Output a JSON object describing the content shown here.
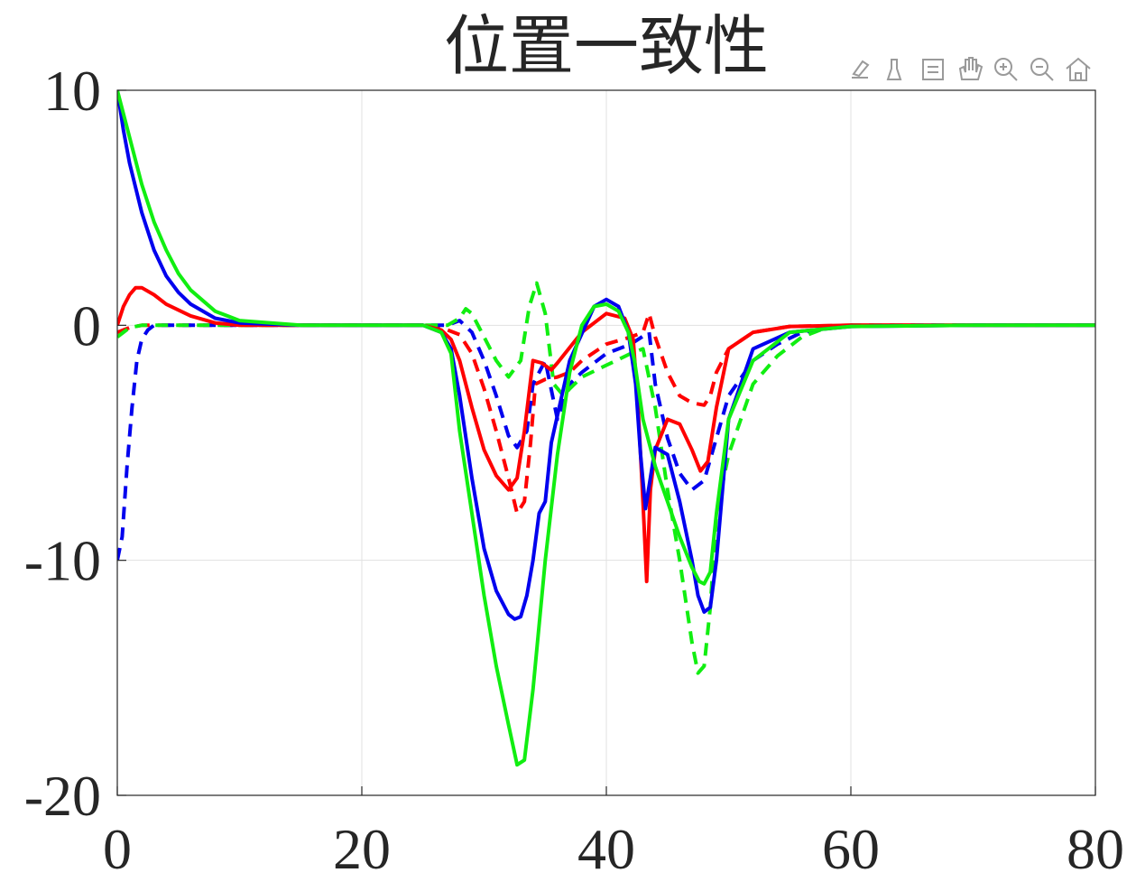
{
  "chart_data": {
    "type": "line",
    "title": "位置一致性",
    "xlabel": "",
    "ylabel": "",
    "xlim": [
      0,
      80
    ],
    "ylim": [
      -20,
      10
    ],
    "xticks": [
      0,
      20,
      40,
      60,
      80
    ],
    "xtick_labels": [
      "0",
      "20",
      "40",
      "60",
      "80"
    ],
    "yticks": [
      10,
      0,
      -10,
      -20
    ],
    "ytick_labels": [
      "10",
      "0",
      "-10",
      "-20"
    ],
    "grid": true,
    "series": [
      {
        "color": "#ff0000",
        "dash": false,
        "x": [
          0,
          0.5,
          1,
          1.5,
          2,
          3,
          4,
          6,
          8,
          10,
          15,
          20,
          25,
          26.5,
          27.3,
          28,
          29,
          30,
          31,
          32,
          32.7,
          33.3,
          34,
          34.7,
          35.5,
          36,
          38,
          40,
          41.5,
          42.2,
          42.6,
          43,
          43.3,
          43.6,
          44,
          45,
          46,
          47,
          47.7,
          48.3,
          49,
          50,
          52,
          55,
          60,
          70,
          80
        ],
        "y": [
          0,
          0.8,
          1.3,
          1.6,
          1.6,
          1.3,
          0.9,
          0.4,
          0.1,
          0,
          0,
          0,
          0,
          -0.2,
          -0.6,
          -1.5,
          -3.5,
          -5.3,
          -6.4,
          -7.0,
          -6.5,
          -4.5,
          -1.5,
          -1.6,
          -1.9,
          -1.6,
          -0.3,
          0.5,
          0.3,
          -0.6,
          -3.5,
          -7.5,
          -10.9,
          -7.0,
          -5.3,
          -4.0,
          -4.2,
          -5.3,
          -6.2,
          -5.8,
          -3.5,
          -1.0,
          -0.3,
          -0.05,
          0,
          0,
          0
        ]
      },
      {
        "color": "#0000ee",
        "dash": false,
        "x": [
          0,
          0.5,
          1,
          2,
          3,
          4,
          5,
          6,
          8,
          10,
          15,
          20,
          25,
          26.5,
          27.3,
          28,
          29,
          30,
          31,
          32,
          32.5,
          33,
          33.5,
          34,
          34.5,
          35,
          35.5,
          37,
          39,
          40,
          41,
          41.8,
          42.4,
          42.8,
          43.2,
          43.6,
          44,
          45,
          46,
          47,
          47.5,
          48,
          48.5,
          49,
          50,
          52,
          55,
          60,
          70,
          80
        ],
        "y": [
          10,
          8.3,
          6.9,
          4.8,
          3.2,
          2.1,
          1.4,
          0.9,
          0.3,
          0.1,
          0,
          0,
          0,
          -0.3,
          -1,
          -3,
          -6.5,
          -9.5,
          -11.3,
          -12.3,
          -12.5,
          -12.4,
          -11.5,
          -10,
          -8,
          -7.5,
          -5,
          -1.5,
          0.8,
          1.1,
          0.8,
          -0.3,
          -2.5,
          -5.5,
          -7.8,
          -6.5,
          -5.2,
          -5.5,
          -7.5,
          -10,
          -11.5,
          -12.2,
          -12,
          -10,
          -4,
          -1.0,
          -0.3,
          -0.05,
          0,
          0
        ]
      },
      {
        "color": "#11ee11",
        "dash": false,
        "x": [
          0,
          0.5,
          1,
          2,
          3,
          4,
          5,
          6,
          8,
          10,
          15,
          20,
          25,
          26.5,
          27.3,
          28,
          29,
          30,
          31,
          32,
          32.7,
          33.3,
          34,
          35,
          36,
          37,
          38,
          39,
          40,
          41,
          41.8,
          42.3,
          43,
          44,
          45,
          46,
          47,
          47.6,
          48,
          48.5,
          49,
          50,
          52,
          55,
          60,
          70,
          80
        ],
        "y": [
          10,
          9,
          8,
          6,
          4.4,
          3.2,
          2.2,
          1.5,
          0.6,
          0.2,
          0,
          0,
          0,
          -0.3,
          -1.2,
          -4.5,
          -8,
          -11.5,
          -14.5,
          -17,
          -18.7,
          -18.5,
          -15.5,
          -10,
          -5.5,
          -2,
          0,
          0.8,
          0.9,
          0.6,
          -0.3,
          -1.5,
          -4,
          -6,
          -7.5,
          -9,
          -10.3,
          -10.9,
          -11,
          -10.5,
          -8,
          -4,
          -1.5,
          -0.3,
          -0.05,
          0,
          0
        ]
      },
      {
        "color": "#ff0000",
        "dash": true,
        "x": [
          0,
          0.5,
          1,
          2,
          4,
          8,
          12,
          20,
          25,
          27,
          28,
          29,
          30,
          31,
          32,
          32.7,
          33.3,
          33.8,
          34.2,
          35,
          36,
          37,
          38,
          40,
          42,
          43,
          43.5,
          44,
          45,
          46,
          47,
          48,
          48.5,
          49,
          50,
          52,
          55,
          60,
          70,
          80
        ],
        "y": [
          -0.3,
          -0.2,
          -0.1,
          0,
          0,
          0,
          0,
          0,
          0,
          -0.2,
          -0.4,
          -1.2,
          -2.7,
          -4.5,
          -6.5,
          -8.0,
          -7.5,
          -5,
          -2.5,
          -2.3,
          -2.2,
          -2.0,
          -1.5,
          -0.8,
          -0.5,
          -0.3,
          0.5,
          -0.5,
          -2,
          -3,
          -3.3,
          -3.4,
          -3,
          -2,
          -1.0,
          -0.3,
          -0.05,
          0,
          0,
          0
        ]
      },
      {
        "color": "#0000ee",
        "dash": true,
        "x": [
          0,
          0.4,
          0.8,
          1.2,
          1.6,
          2,
          2.5,
          3,
          4,
          6,
          8,
          12,
          20,
          25,
          27,
          28,
          29,
          30,
          31,
          32,
          32.7,
          33.5,
          34,
          35,
          36,
          37,
          38,
          40,
          42,
          43.5,
          44,
          45,
          46,
          47,
          48,
          49,
          50,
          52,
          54,
          56,
          60,
          70,
          80
        ],
        "y": [
          -10,
          -9,
          -6,
          -3.5,
          -1.5,
          -0.6,
          -0.2,
          0,
          0,
          0,
          0,
          0,
          0,
          0,
          0,
          0.2,
          -0.3,
          -1.5,
          -3,
          -4.7,
          -5.2,
          -4.5,
          -2.5,
          -1.5,
          -4,
          -2.5,
          -2,
          -1.2,
          -0.8,
          -0.3,
          -2.5,
          -4.8,
          -6.3,
          -7,
          -6.6,
          -4.8,
          -3,
          -1.5,
          -0.8,
          -0.3,
          0,
          0,
          0
        ]
      },
      {
        "color": "#11ee11",
        "dash": true,
        "x": [
          0,
          0.5,
          1,
          2,
          4,
          8,
          12,
          20,
          25,
          27,
          28,
          28.5,
          29,
          30,
          31,
          32,
          33,
          33.7,
          34.3,
          35,
          35.7,
          36.5,
          37,
          38,
          40,
          42,
          43,
          44,
          45,
          46,
          47,
          47.5,
          48,
          48.5,
          49,
          50,
          52,
          54,
          56,
          58,
          60,
          70,
          80
        ],
        "y": [
          -0.5,
          -0.3,
          -0.1,
          0,
          0,
          0,
          0,
          0,
          0,
          0,
          0.3,
          0.7,
          0.5,
          -0.5,
          -1.5,
          -2.2,
          -1.5,
          0.8,
          1.8,
          0.5,
          -2.5,
          -3,
          -2.7,
          -2.2,
          -1.7,
          -1.2,
          -1,
          -3.5,
          -7,
          -10,
          -13.5,
          -14.8,
          -14.5,
          -12,
          -8,
          -5.5,
          -2.5,
          -1.3,
          -0.5,
          -0.1,
          0,
          0,
          0
        ]
      }
    ]
  }
}
